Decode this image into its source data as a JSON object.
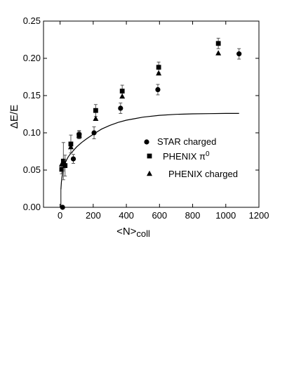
{
  "chart_data": {
    "type": "scatter",
    "xlabel": "<N>",
    "xlabel_sub": "coll",
    "ylabel": "ΔE/E",
    "xlim": [
      -100,
      1200
    ],
    "ylim": [
      0,
      0.25
    ],
    "xticks": [
      0,
      200,
      400,
      600,
      800,
      1000,
      1200
    ],
    "yticks": [
      0.0,
      0.05,
      0.1,
      0.15,
      0.2,
      0.25
    ],
    "xtick_labels": [
      "0",
      "200",
      "400",
      "600",
      "800",
      "1000",
      "1200"
    ],
    "ytick_labels": [
      "0.00",
      "0.05",
      "0.10",
      "0.15",
      "0.20",
      "0.25"
    ],
    "grid": false,
    "legend_position": "right-middle",
    "series": [
      {
        "name": "STAR charged",
        "marker": "circle",
        "x": [
          15,
          80,
          115,
          205,
          365,
          590,
          1080
        ],
        "y": [
          0.0,
          0.065,
          0.098,
          0.1,
          0.133,
          0.158,
          0.206
        ],
        "err": [
          0.0,
          0.006,
          0.005,
          0.008,
          0.007,
          0.007,
          0.007
        ]
      },
      {
        "name": "PHENIX π0",
        "name_base": "PHENIX π",
        "name_sup": "0",
        "marker": "square",
        "x": [
          10,
          20,
          30,
          65,
          115,
          215,
          375,
          595,
          955
        ],
        "y": [
          0.051,
          0.062,
          0.056,
          0.085,
          0.097,
          0.13,
          0.156,
          0.188,
          0.22
        ],
        "err": [
          0.006,
          0.025,
          0.014,
          0.012,
          0.005,
          0.008,
          0.008,
          0.007,
          0.007
        ]
      },
      {
        "name": "PHENIX charged",
        "marker": "triangle",
        "x": [
          10,
          20,
          65,
          115,
          215,
          375,
          595,
          955
        ],
        "y": [
          0.058,
          0.062,
          0.081,
          0.096,
          0.119,
          0.149,
          0.18,
          0.207
        ],
        "err": [
          0,
          0,
          0,
          0,
          0,
          0,
          0,
          0
        ]
      }
    ],
    "curve": {
      "x": [
        5,
        8,
        12,
        16,
        20,
        25,
        30,
        40,
        50,
        60,
        80,
        100,
        130,
        160,
        200,
        250,
        300,
        350,
        400,
        450,
        500,
        600,
        700,
        800,
        900,
        1000,
        1080
      ],
      "y": [
        0.024,
        0.034,
        0.041,
        0.047,
        0.052,
        0.056,
        0.059,
        0.064,
        0.068,
        0.071,
        0.076,
        0.081,
        0.087,
        0.092,
        0.098,
        0.105,
        0.11,
        0.114,
        0.117,
        0.119,
        0.121,
        0.1235,
        0.1248,
        0.1255,
        0.1258,
        0.126,
        0.126
      ]
    }
  }
}
